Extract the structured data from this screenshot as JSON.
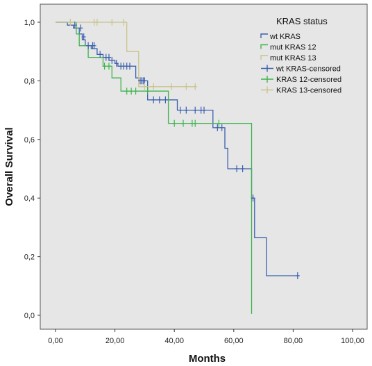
{
  "chart_data": {
    "type": "line",
    "subtype": "kaplan-meier survival curve",
    "xlabel": "Months",
    "ylabel": "Overall Survival",
    "xlim": [
      0,
      100
    ],
    "ylim": [
      0,
      1
    ],
    "xticks": [
      "0,00",
      "20,00",
      "40,00",
      "60,00",
      "80,00",
      "100,00"
    ],
    "yticks": [
      "0,0",
      "0,2",
      "0,4",
      "0,6",
      "0,8",
      "1,0"
    ],
    "grid": false,
    "background": "#e6e6e6",
    "legend": {
      "title": "KRAS status",
      "position": "top-right",
      "entries": [
        {
          "label": "wt KRAS",
          "color": "#3a5fad",
          "marker": "line"
        },
        {
          "label": "mut KRAS 12",
          "color": "#3cb44b",
          "marker": "line"
        },
        {
          "label": "mut KRAS 13",
          "color": "#c8c48e",
          "marker": "line"
        },
        {
          "label": "wt KRAS-censored",
          "color": "#3a5fad",
          "marker": "cross"
        },
        {
          "label": "KRAS 12-censored",
          "color": "#3cb44b",
          "marker": "cross"
        },
        {
          "label": "KRAS 13-censored",
          "color": "#c8c48e",
          "marker": "cross"
        }
      ]
    },
    "series": [
      {
        "name": "wt KRAS",
        "color": "#3a5fad",
        "steps": [
          [
            0,
            1.0
          ],
          [
            4,
            1.0
          ],
          [
            4,
            0.99
          ],
          [
            6,
            0.99
          ],
          [
            6,
            0.98
          ],
          [
            8,
            0.98
          ],
          [
            8,
            0.96
          ],
          [
            9,
            0.96
          ],
          [
            9,
            0.94
          ],
          [
            10,
            0.94
          ],
          [
            10,
            0.92
          ],
          [
            12,
            0.92
          ],
          [
            12,
            0.91
          ],
          [
            14,
            0.91
          ],
          [
            14,
            0.89
          ],
          [
            16,
            0.89
          ],
          [
            16,
            0.88
          ],
          [
            18,
            0.88
          ],
          [
            18,
            0.87
          ],
          [
            20,
            0.87
          ],
          [
            20,
            0.86
          ],
          [
            21,
            0.86
          ],
          [
            21,
            0.85
          ],
          [
            27,
            0.85
          ],
          [
            27,
            0.81
          ],
          [
            28,
            0.81
          ],
          [
            28,
            0.8
          ],
          [
            31,
            0.8
          ],
          [
            31,
            0.735
          ],
          [
            41,
            0.735
          ],
          [
            41,
            0.7
          ],
          [
            53,
            0.7
          ],
          [
            53,
            0.64
          ],
          [
            57,
            0.64
          ],
          [
            57,
            0.57
          ],
          [
            58,
            0.57
          ],
          [
            58,
            0.5
          ],
          [
            66,
            0.5
          ],
          [
            66,
            0.4
          ],
          [
            67,
            0.4
          ],
          [
            67,
            0.265
          ],
          [
            71,
            0.265
          ],
          [
            71,
            0.135
          ],
          [
            82,
            0.135
          ]
        ],
        "censored": [
          [
            6.5,
            0.99
          ],
          [
            8.5,
            0.98
          ],
          [
            9.5,
            0.95
          ],
          [
            11,
            0.92
          ],
          [
            12.5,
            0.92
          ],
          [
            13,
            0.92
          ],
          [
            15,
            0.89
          ],
          [
            17,
            0.88
          ],
          [
            18,
            0.88
          ],
          [
            19,
            0.87
          ],
          [
            20.5,
            0.86
          ],
          [
            22,
            0.85
          ],
          [
            23,
            0.85
          ],
          [
            24,
            0.85
          ],
          [
            25,
            0.85
          ],
          [
            28.5,
            0.8
          ],
          [
            29,
            0.8
          ],
          [
            29.5,
            0.8
          ],
          [
            30,
            0.8
          ],
          [
            33,
            0.735
          ],
          [
            35,
            0.735
          ],
          [
            37,
            0.735
          ],
          [
            42,
            0.7
          ],
          [
            44,
            0.7
          ],
          [
            47,
            0.7
          ],
          [
            49,
            0.7
          ],
          [
            50,
            0.7
          ],
          [
            54.5,
            0.64
          ],
          [
            56,
            0.64
          ],
          [
            61,
            0.5
          ],
          [
            63,
            0.5
          ],
          [
            66.5,
            0.4
          ],
          [
            81.5,
            0.135
          ]
        ]
      },
      {
        "name": "mut KRAS 12",
        "color": "#3cb44b",
        "steps": [
          [
            0,
            1.0
          ],
          [
            7,
            1.0
          ],
          [
            7,
            0.96
          ],
          [
            8,
            0.96
          ],
          [
            8,
            0.92
          ],
          [
            11,
            0.92
          ],
          [
            11,
            0.88
          ],
          [
            16,
            0.88
          ],
          [
            16,
            0.85
          ],
          [
            19,
            0.85
          ],
          [
            19,
            0.81
          ],
          [
            22,
            0.81
          ],
          [
            22,
            0.765
          ],
          [
            38,
            0.765
          ],
          [
            38,
            0.655
          ],
          [
            65,
            0.655
          ],
          [
            65,
            0.655
          ],
          [
            66,
            0.655
          ],
          [
            66,
            0.005
          ]
        ],
        "censored": [
          [
            16.5,
            0.85
          ],
          [
            18,
            0.85
          ],
          [
            24,
            0.765
          ],
          [
            25.5,
            0.765
          ],
          [
            27,
            0.765
          ],
          [
            31,
            0.765
          ],
          [
            40,
            0.655
          ],
          [
            43,
            0.655
          ],
          [
            46,
            0.655
          ],
          [
            47,
            0.655
          ],
          [
            55,
            0.655
          ]
        ]
      },
      {
        "name": "mut KRAS 13",
        "color": "#c8c48e",
        "steps": [
          [
            0,
            1.0
          ],
          [
            24,
            1.0
          ],
          [
            24,
            0.9
          ],
          [
            28,
            0.9
          ],
          [
            28,
            0.78
          ],
          [
            47,
            0.78
          ]
        ],
        "censored": [
          [
            5,
            1.0
          ],
          [
            13,
            1.0
          ],
          [
            14,
            1.0
          ],
          [
            19,
            1.0
          ],
          [
            23,
            1.0
          ],
          [
            30,
            0.78
          ],
          [
            33,
            0.78
          ],
          [
            39,
            0.78
          ],
          [
            44,
            0.78
          ],
          [
            47,
            0.78
          ]
        ]
      }
    ]
  }
}
